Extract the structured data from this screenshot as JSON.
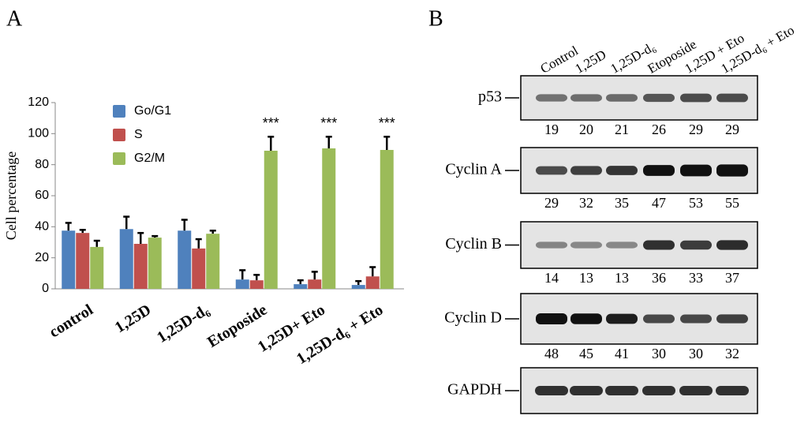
{
  "panel_labels": [
    "A",
    "B"
  ],
  "chart_data": {
    "type": "bar",
    "y_label": "Cell percentage",
    "categories": [
      "control",
      "1,25D",
      "1,25D-d₆",
      "Etoposide",
      "1,25D+ Eto",
      "1,25D-d₆ + Eto"
    ],
    "series": [
      {
        "name": "Go/G1",
        "color": "#4f81bd",
        "values": [
          37.5,
          38.5,
          37.5,
          6,
          3,
          2.5
        ],
        "errors": [
          5,
          8,
          7,
          6,
          2.5,
          2.5
        ]
      },
      {
        "name": "S",
        "color": "#c0504d",
        "values": [
          36,
          29,
          26,
          5.5,
          6,
          8
        ],
        "errors": [
          2,
          7,
          6,
          3.5,
          5,
          6
        ]
      },
      {
        "name": "G2/M",
        "color": "#9bbb59",
        "values": [
          27,
          33,
          35.5,
          89,
          90.5,
          89.5
        ],
        "errors": [
          4,
          1,
          2,
          9,
          7.5,
          8.5
        ]
      }
    ],
    "significance": [
      null,
      null,
      null,
      "***",
      "***",
      "***"
    ],
    "ylim": [
      0,
      120
    ],
    "yticks": [
      0,
      20,
      40,
      60,
      80,
      100,
      120
    ]
  },
  "blot": {
    "lanes": [
      "Control",
      "1,25D",
      "1,25D-d₆",
      "Etoposide",
      "1,25D + Eto",
      "1,25D-d₆ + Eto"
    ],
    "rows": [
      {
        "label": "p53",
        "values": [
          19,
          20,
          21,
          26,
          29,
          29
        ]
      },
      {
        "label": "Cyclin A",
        "values": [
          29,
          32,
          35,
          47,
          53,
          55
        ]
      },
      {
        "label": "Cyclin B",
        "values": [
          14,
          13,
          13,
          36,
          33,
          37
        ]
      },
      {
        "label": "Cyclin D",
        "values": [
          48,
          45,
          41,
          30,
          30,
          32
        ]
      },
      {
        "label": "GAPDH"
      }
    ]
  }
}
